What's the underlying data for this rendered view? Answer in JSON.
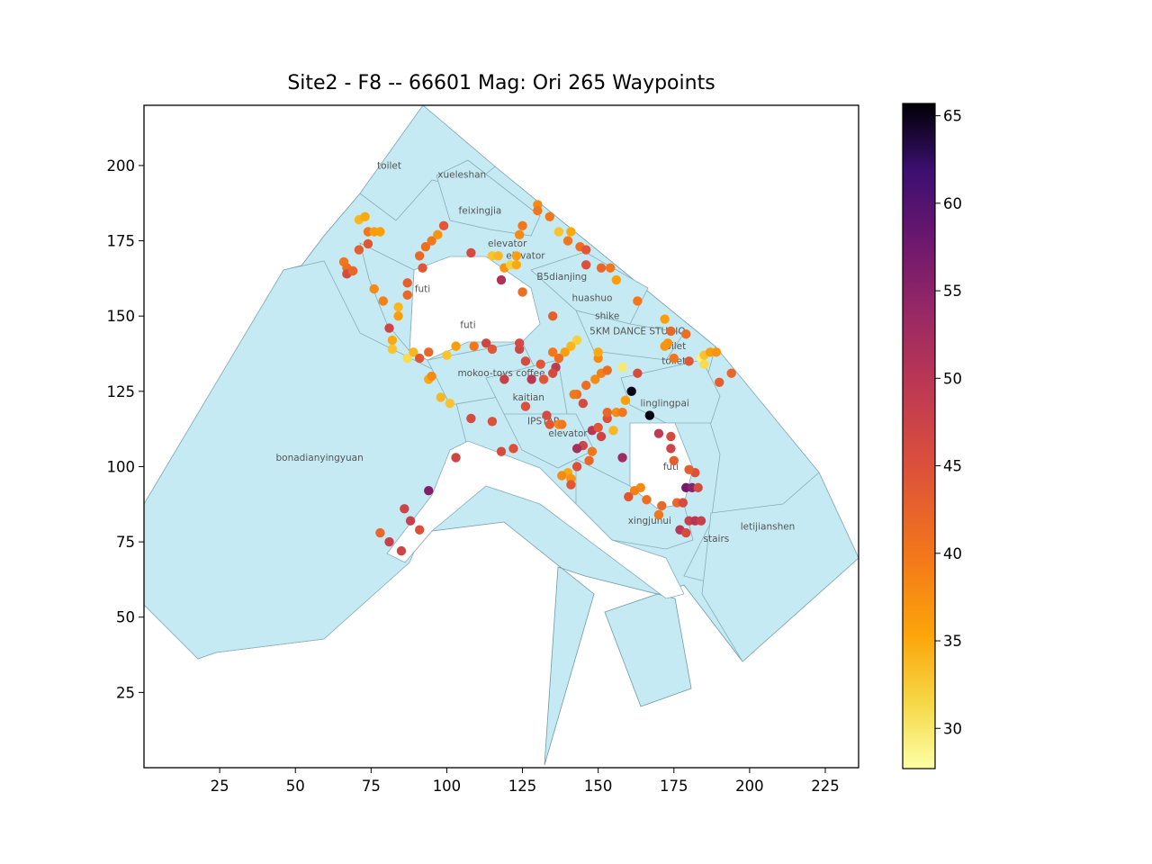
{
  "chart_data": {
    "type": "scatter",
    "title": "Site2 - F8 -- 66601 Mag: Ori 265 Waypoints",
    "xlim": [
      0,
      236
    ],
    "ylim": [
      0,
      220
    ],
    "x_ticks": [
      25,
      50,
      75,
      100,
      125,
      150,
      175,
      200,
      225
    ],
    "y_ticks": [
      25,
      50,
      75,
      100,
      125,
      150,
      175,
      200
    ],
    "colorbar": {
      "colormap": "inferno_r",
      "range": [
        27.7,
        65.7
      ],
      "ticks": [
        30,
        35,
        40,
        45,
        50,
        55,
        60,
        65
      ]
    },
    "room_labels": [
      {
        "text": "toilet",
        "x": 81,
        "y": 199
      },
      {
        "text": "xueleshan",
        "x": 105,
        "y": 196
      },
      {
        "text": "feixingjia",
        "x": 111,
        "y": 184
      },
      {
        "text": "elevator",
        "x": 120,
        "y": 173
      },
      {
        "text": "elevator",
        "x": 126,
        "y": 169
      },
      {
        "text": "B5dianjing",
        "x": 138,
        "y": 162
      },
      {
        "text": "futi",
        "x": 92,
        "y": 158
      },
      {
        "text": "huashuo",
        "x": 148,
        "y": 155
      },
      {
        "text": "futi",
        "x": 107,
        "y": 146
      },
      {
        "text": "shike",
        "x": 153,
        "y": 149
      },
      {
        "text": "5KM DANCE STUDIO",
        "x": 163,
        "y": 144
      },
      {
        "text": "toilet",
        "x": 175,
        "y": 139
      },
      {
        "text": "toilet",
        "x": 175,
        "y": 134
      },
      {
        "text": "mokoo-toys coffee",
        "x": 118,
        "y": 130
      },
      {
        "text": "kaitian",
        "x": 127,
        "y": 122
      },
      {
        "text": "linglingpai",
        "x": 172,
        "y": 120
      },
      {
        "text": "IPSTAR",
        "x": 132,
        "y": 114
      },
      {
        "text": "elevator",
        "x": 140,
        "y": 110
      },
      {
        "text": "bonadianyingyuan",
        "x": 58,
        "y": 102
      },
      {
        "text": "futi",
        "x": 174,
        "y": 99
      },
      {
        "text": "xingjuhui",
        "x": 167,
        "y": 81
      },
      {
        "text": "letijianshen",
        "x": 206,
        "y": 79
      },
      {
        "text": "stairs",
        "x": 189,
        "y": 75
      }
    ],
    "points": [
      {
        "x": 71,
        "y": 182,
        "v": 34
      },
      {
        "x": 73,
        "y": 183,
        "v": 35
      },
      {
        "x": 74,
        "y": 178,
        "v": 40
      },
      {
        "x": 76,
        "y": 178,
        "v": 36
      },
      {
        "x": 78,
        "y": 178,
        "v": 36
      },
      {
        "x": 74,
        "y": 174,
        "v": 44
      },
      {
        "x": 71,
        "y": 172,
        "v": 43
      },
      {
        "x": 66,
        "y": 168,
        "v": 40
      },
      {
        "x": 67,
        "y": 166,
        "v": 41
      },
      {
        "x": 67,
        "y": 164,
        "v": 46
      },
      {
        "x": 69,
        "y": 165,
        "v": 42
      },
      {
        "x": 76,
        "y": 159,
        "v": 38
      },
      {
        "x": 79,
        "y": 155,
        "v": 39
      },
      {
        "x": 84,
        "y": 153,
        "v": 34
      },
      {
        "x": 84,
        "y": 150,
        "v": 36
      },
      {
        "x": 81,
        "y": 146,
        "v": 47
      },
      {
        "x": 82,
        "y": 142,
        "v": 35
      },
      {
        "x": 82,
        "y": 139,
        "v": 33
      },
      {
        "x": 87,
        "y": 136,
        "v": 31
      },
      {
        "x": 89,
        "y": 138,
        "v": 34
      },
      {
        "x": 91,
        "y": 136,
        "v": 44
      },
      {
        "x": 94,
        "y": 138,
        "v": 42
      },
      {
        "x": 94,
        "y": 129,
        "v": 35
      },
      {
        "x": 95,
        "y": 130,
        "v": 38
      },
      {
        "x": 87,
        "y": 157,
        "v": 42
      },
      {
        "x": 87,
        "y": 161,
        "v": 43
      },
      {
        "x": 92,
        "y": 166,
        "v": 44
      },
      {
        "x": 91,
        "y": 170,
        "v": 42
      },
      {
        "x": 93,
        "y": 173,
        "v": 41
      },
      {
        "x": 95,
        "y": 175,
        "v": 40
      },
      {
        "x": 97,
        "y": 177,
        "v": 37
      },
      {
        "x": 99,
        "y": 180,
        "v": 44
      },
      {
        "x": 108,
        "y": 171,
        "v": 46
      },
      {
        "x": 115,
        "y": 170,
        "v": 33
      },
      {
        "x": 117,
        "y": 170,
        "v": 34
      },
      {
        "x": 119,
        "y": 166,
        "v": 37
      },
      {
        "x": 121,
        "y": 167,
        "v": 32
      },
      {
        "x": 123,
        "y": 167,
        "v": 35
      },
      {
        "x": 118,
        "y": 162,
        "v": 51
      },
      {
        "x": 123,
        "y": 170,
        "v": 36
      },
      {
        "x": 124,
        "y": 177,
        "v": 38
      },
      {
        "x": 125,
        "y": 180,
        "v": 40
      },
      {
        "x": 130,
        "y": 187,
        "v": 38
      },
      {
        "x": 130,
        "y": 185,
        "v": 40
      },
      {
        "x": 134,
        "y": 183,
        "v": 40
      },
      {
        "x": 137,
        "y": 178,
        "v": 33
      },
      {
        "x": 141,
        "y": 178,
        "v": 35
      },
      {
        "x": 140,
        "y": 175,
        "v": 40
      },
      {
        "x": 144,
        "y": 173,
        "v": 41
      },
      {
        "x": 146,
        "y": 172,
        "v": 44
      },
      {
        "x": 146,
        "y": 167,
        "v": 45
      },
      {
        "x": 151,
        "y": 166,
        "v": 42
      },
      {
        "x": 154,
        "y": 166,
        "v": 40
      },
      {
        "x": 156,
        "y": 162,
        "v": 36
      },
      {
        "x": 125,
        "y": 158,
        "v": 41
      },
      {
        "x": 135,
        "y": 150,
        "v": 43
      },
      {
        "x": 163,
        "y": 155,
        "v": 40
      },
      {
        "x": 172,
        "y": 149,
        "v": 36
      },
      {
        "x": 174,
        "y": 145,
        "v": 42
      },
      {
        "x": 179,
        "y": 144,
        "v": 41
      },
      {
        "x": 173,
        "y": 141,
        "v": 37
      },
      {
        "x": 172,
        "y": 140,
        "v": 37
      },
      {
        "x": 175,
        "y": 136,
        "v": 40
      },
      {
        "x": 180,
        "y": 135,
        "v": 44
      },
      {
        "x": 184,
        "y": 136,
        "v": 29
      },
      {
        "x": 185,
        "y": 134,
        "v": 31
      },
      {
        "x": 185,
        "y": 137,
        "v": 33
      },
      {
        "x": 187,
        "y": 138,
        "v": 36
      },
      {
        "x": 189,
        "y": 138,
        "v": 37
      },
      {
        "x": 194,
        "y": 131,
        "v": 42
      },
      {
        "x": 190,
        "y": 128,
        "v": 43
      },
      {
        "x": 163,
        "y": 131,
        "v": 46
      },
      {
        "x": 158,
        "y": 133,
        "v": 30
      },
      {
        "x": 161,
        "y": 125,
        "v": 65
      },
      {
        "x": 167,
        "y": 117,
        "v": 65.5
      },
      {
        "x": 159,
        "y": 122,
        "v": 36
      },
      {
        "x": 156,
        "y": 118,
        "v": 38
      },
      {
        "x": 158,
        "y": 118,
        "v": 40
      },
      {
        "x": 153,
        "y": 116,
        "v": 45
      },
      {
        "x": 155,
        "y": 112,
        "v": 34
      },
      {
        "x": 151,
        "y": 110,
        "v": 47
      },
      {
        "x": 148,
        "y": 112,
        "v": 50
      },
      {
        "x": 145,
        "y": 107,
        "v": 47
      },
      {
        "x": 143,
        "y": 106,
        "v": 52
      },
      {
        "x": 147,
        "y": 102,
        "v": 42
      },
      {
        "x": 148,
        "y": 105,
        "v": 40
      },
      {
        "x": 143,
        "y": 100,
        "v": 45
      },
      {
        "x": 140,
        "y": 98,
        "v": 35
      },
      {
        "x": 141,
        "y": 96,
        "v": 37
      },
      {
        "x": 141,
        "y": 94,
        "v": 44
      },
      {
        "x": 138,
        "y": 97,
        "v": 38
      },
      {
        "x": 158,
        "y": 103,
        "v": 53
      },
      {
        "x": 150,
        "y": 113,
        "v": 44
      },
      {
        "x": 153,
        "y": 118,
        "v": 42
      },
      {
        "x": 145,
        "y": 121,
        "v": 46
      },
      {
        "x": 143,
        "y": 124,
        "v": 41
      },
      {
        "x": 146,
        "y": 127,
        "v": 41
      },
      {
        "x": 142,
        "y": 124,
        "v": 40
      },
      {
        "x": 149,
        "y": 129,
        "v": 38
      },
      {
        "x": 151,
        "y": 131,
        "v": 39
      },
      {
        "x": 153,
        "y": 132,
        "v": 41
      },
      {
        "x": 150,
        "y": 136,
        "v": 38
      },
      {
        "x": 150,
        "y": 138,
        "v": 35
      },
      {
        "x": 143,
        "y": 142,
        "v": 32
      },
      {
        "x": 141,
        "y": 140,
        "v": 34
      },
      {
        "x": 139,
        "y": 138,
        "v": 36
      },
      {
        "x": 137,
        "y": 136,
        "v": 41
      },
      {
        "x": 136,
        "y": 133,
        "v": 49
      },
      {
        "x": 135,
        "y": 131,
        "v": 46
      },
      {
        "x": 132,
        "y": 129,
        "v": 44
      },
      {
        "x": 135,
        "y": 138,
        "v": 40
      },
      {
        "x": 131,
        "y": 134,
        "v": 44
      },
      {
        "x": 124,
        "y": 139,
        "v": 47
      },
      {
        "x": 124,
        "y": 141,
        "v": 46
      },
      {
        "x": 126,
        "y": 135,
        "v": 46
      },
      {
        "x": 115,
        "y": 139,
        "v": 44
      },
      {
        "x": 113,
        "y": 141,
        "v": 47
      },
      {
        "x": 109,
        "y": 140,
        "v": 40
      },
      {
        "x": 103,
        "y": 140,
        "v": 36
      },
      {
        "x": 100,
        "y": 137,
        "v": 33
      },
      {
        "x": 98,
        "y": 123,
        "v": 34
      },
      {
        "x": 101,
        "y": 121,
        "v": 33
      },
      {
        "x": 108,
        "y": 116,
        "v": 46
      },
      {
        "x": 115,
        "y": 115,
        "v": 45
      },
      {
        "x": 119,
        "y": 129,
        "v": 48
      },
      {
        "x": 128,
        "y": 129,
        "v": 50
      },
      {
        "x": 126,
        "y": 120,
        "v": 45
      },
      {
        "x": 133,
        "y": 117,
        "v": 46
      },
      {
        "x": 137,
        "y": 114,
        "v": 38
      },
      {
        "x": 138,
        "y": 114,
        "v": 40
      },
      {
        "x": 134,
        "y": 114,
        "v": 44
      },
      {
        "x": 118,
        "y": 105,
        "v": 46
      },
      {
        "x": 122,
        "y": 106,
        "v": 45
      },
      {
        "x": 103,
        "y": 103,
        "v": 47
      },
      {
        "x": 94,
        "y": 92,
        "v": 56
      },
      {
        "x": 86,
        "y": 86,
        "v": 47
      },
      {
        "x": 88,
        "y": 82,
        "v": 48
      },
      {
        "x": 91,
        "y": 79,
        "v": 45
      },
      {
        "x": 78,
        "y": 78,
        "v": 42
      },
      {
        "x": 81,
        "y": 75,
        "v": 48
      },
      {
        "x": 85,
        "y": 72,
        "v": 47
      },
      {
        "x": 164,
        "y": 93,
        "v": 38
      },
      {
        "x": 162,
        "y": 92,
        "v": 39
      },
      {
        "x": 160,
        "y": 90,
        "v": 44
      },
      {
        "x": 166,
        "y": 89,
        "v": 41
      },
      {
        "x": 171,
        "y": 87,
        "v": 42
      },
      {
        "x": 170,
        "y": 84,
        "v": 40
      },
      {
        "x": 176,
        "y": 88,
        "v": 42
      },
      {
        "x": 178,
        "y": 88,
        "v": 46
      },
      {
        "x": 179,
        "y": 93,
        "v": 57
      },
      {
        "x": 181,
        "y": 93,
        "v": 55
      },
      {
        "x": 183,
        "y": 93,
        "v": 46
      },
      {
        "x": 182,
        "y": 98,
        "v": 45
      },
      {
        "x": 180,
        "y": 99,
        "v": 43
      },
      {
        "x": 180,
        "y": 82,
        "v": 48
      },
      {
        "x": 182,
        "y": 82,
        "v": 50
      },
      {
        "x": 184,
        "y": 82,
        "v": 48
      },
      {
        "x": 177,
        "y": 79,
        "v": 50
      },
      {
        "x": 179,
        "y": 78,
        "v": 46
      },
      {
        "x": 175,
        "y": 102,
        "v": 43
      },
      {
        "x": 174,
        "y": 106,
        "v": 47
      },
      {
        "x": 174,
        "y": 110,
        "v": 46
      },
      {
        "x": 170,
        "y": 111,
        "v": 49
      }
    ]
  }
}
